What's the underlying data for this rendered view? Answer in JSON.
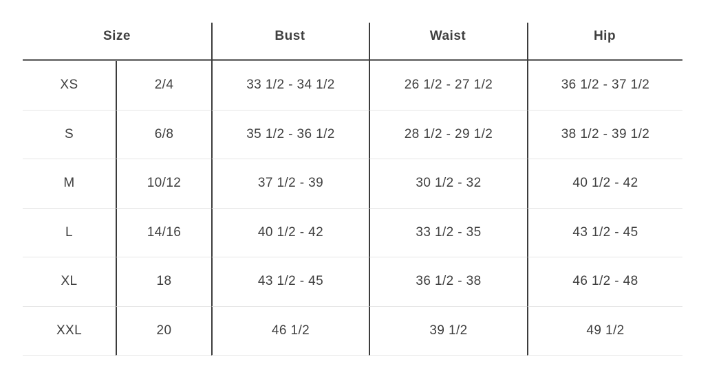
{
  "table": {
    "headers": {
      "size": "Size",
      "bust": "Bust",
      "waist": "Waist",
      "hip": "Hip"
    },
    "rows": [
      {
        "size": "XS",
        "size_number": "2/4",
        "bust": "33 1/2 - 34 1/2",
        "waist": "26 1/2 - 27 1/2",
        "hip": "36 1/2 - 37 1/2"
      },
      {
        "size": "S",
        "size_number": "6/8",
        "bust": "35 1/2 - 36 1/2",
        "waist": "28 1/2 - 29 1/2",
        "hip": "38 1/2 - 39 1/2"
      },
      {
        "size": "M",
        "size_number": "10/12",
        "bust": "37 1/2 - 39",
        "waist": "30 1/2 - 32",
        "hip": "40 1/2 - 42"
      },
      {
        "size": "L",
        "size_number": "14/16",
        "bust": "40 1/2 - 42",
        "waist": "33 1/2 - 35",
        "hip": "43 1/2 - 45"
      },
      {
        "size": "XL",
        "size_number": "18",
        "bust": "43 1/2 - 45",
        "waist": "36 1/2 - 38",
        "hip": "46 1/2 - 48"
      },
      {
        "size": "XXL",
        "size_number": "20",
        "bust": "46 1/2",
        "waist": "39 1/2",
        "hip": "49 1/2"
      }
    ],
    "colors": {
      "text": "#3f3f3f",
      "header_rule": "#7b7b7b",
      "column_rule": "#3c3c3c",
      "row_divider": "#e6e6e6",
      "background": "#ffffff"
    }
  }
}
